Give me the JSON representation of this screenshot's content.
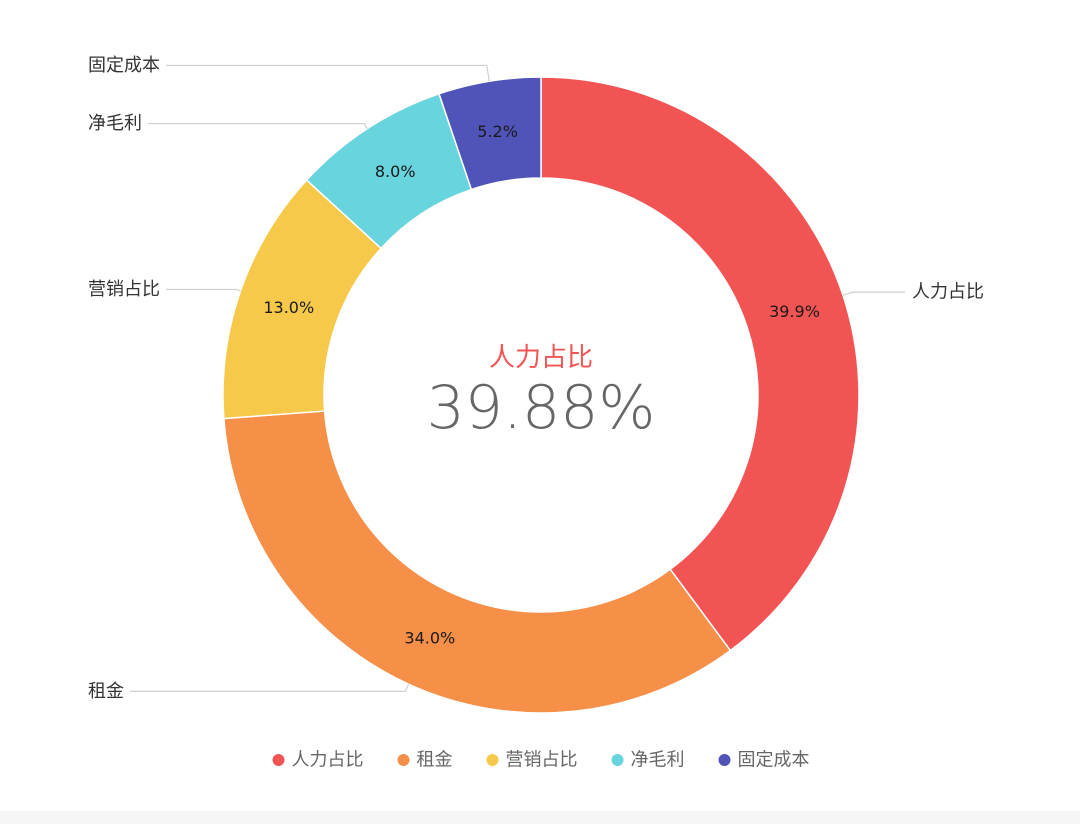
{
  "chart_data": {
    "type": "pie",
    "categories": [
      "人力占比",
      "租金",
      "营销占比",
      "净毛利",
      "固定成本"
    ],
    "values": [
      39.88,
      34.0,
      13.0,
      8.0,
      5.2
    ],
    "data_labels": [
      "39.9%",
      "34.0%",
      "13.0%",
      "8.0%",
      "5.2%"
    ],
    "colors": [
      "#F25454",
      "#F68F47",
      "#F6C94A",
      "#68D4DD",
      "#5054B8"
    ],
    "center": {
      "label": "人力占比",
      "value": "39.88%"
    },
    "legend": {
      "position": "bottom",
      "entries": [
        "人力占比",
        "租金",
        "营销占比",
        "净毛利",
        "固定成本"
      ]
    }
  }
}
